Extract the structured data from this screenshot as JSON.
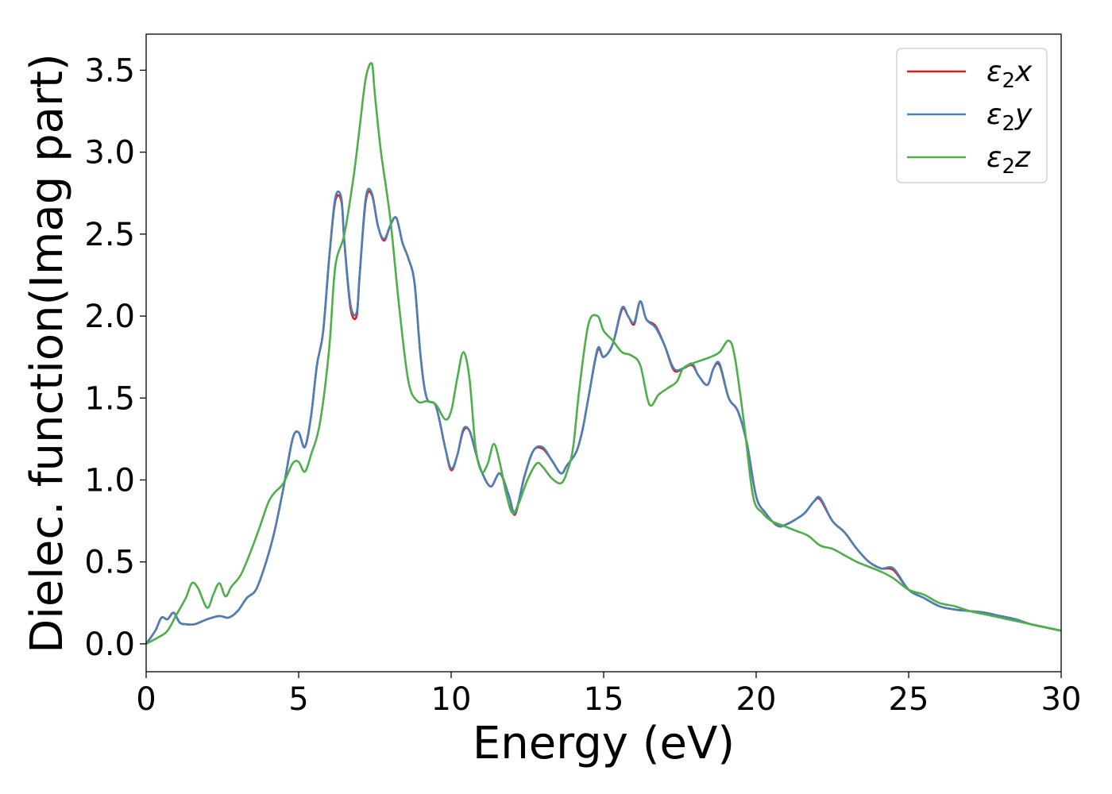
{
  "chart_data": {
    "type": "line",
    "xlabel": "Energy (eV)",
    "ylabel": "Dielec. function(Imag part)",
    "xlim": [
      0,
      30
    ],
    "ylim": [
      -0.17,
      3.72
    ],
    "xticks": [
      0,
      5,
      10,
      15,
      20,
      25,
      30
    ],
    "yticks": [
      0.0,
      0.5,
      1.0,
      1.5,
      2.0,
      2.5,
      3.0,
      3.5
    ],
    "xtick_labels": [
      "0",
      "5",
      "10",
      "15",
      "20",
      "25",
      "30"
    ],
    "ytick_labels": [
      "0.0",
      "0.5",
      "1.0",
      "1.5",
      "2.0",
      "2.5",
      "3.0",
      "3.5"
    ],
    "grid": false,
    "legend_position": "top-right",
    "series": [
      {
        "name": "ε2x",
        "legend_base": "ε",
        "legend_sub": "2",
        "legend_suffix": "x",
        "color": "#e41a1c",
        "x": [
          0,
          0.3,
          0.5,
          0.7,
          0.9,
          1.1,
          1.3,
          1.6,
          2.0,
          2.4,
          2.7,
          3.0,
          3.3,
          3.6,
          3.9,
          4.2,
          4.5,
          4.8,
          5.0,
          5.2,
          5.4,
          5.6,
          5.8,
          6.0,
          6.2,
          6.4,
          6.5,
          6.7,
          6.9,
          7.0,
          7.2,
          7.4,
          7.6,
          7.8,
          8.0,
          8.2,
          8.4,
          8.6,
          8.8,
          9.0,
          9.2,
          9.5,
          9.8,
          10.0,
          10.2,
          10.4,
          10.6,
          10.8,
          11.0,
          11.3,
          11.6,
          11.9,
          12.1,
          12.4,
          12.7,
          13.0,
          13.3,
          13.6,
          13.8,
          14.1,
          14.3,
          14.5,
          14.8,
          15.0,
          15.3,
          15.6,
          15.8,
          16.0,
          16.2,
          16.4,
          16.7,
          17.0,
          17.3,
          17.6,
          17.9,
          18.1,
          18.4,
          18.6,
          18.8,
          19.1,
          19.4,
          19.7,
          20.0,
          20.3,
          20.7,
          21.0,
          21.3,
          21.6,
          21.9,
          22.1,
          22.5,
          22.9,
          23.3,
          23.7,
          24.1,
          24.5,
          25.0,
          25.5,
          26.0,
          26.5,
          27.0,
          27.5,
          28.0,
          28.5,
          29.0,
          29.5,
          30.0
        ],
        "values": [
          0.0,
          0.08,
          0.16,
          0.15,
          0.19,
          0.13,
          0.12,
          0.12,
          0.15,
          0.17,
          0.16,
          0.2,
          0.28,
          0.33,
          0.48,
          0.68,
          0.95,
          1.25,
          1.29,
          1.2,
          1.38,
          1.7,
          1.9,
          2.35,
          2.7,
          2.7,
          2.45,
          2.05,
          2.0,
          2.25,
          2.7,
          2.74,
          2.55,
          2.46,
          2.55,
          2.6,
          2.45,
          2.35,
          2.2,
          1.75,
          1.5,
          1.45,
          1.2,
          1.06,
          1.15,
          1.3,
          1.3,
          1.17,
          1.05,
          0.96,
          1.04,
          0.9,
          0.79,
          1.02,
          1.18,
          1.19,
          1.12,
          1.04,
          1.09,
          1.17,
          1.3,
          1.5,
          1.79,
          1.75,
          1.83,
          2.04,
          2.0,
          1.95,
          2.09,
          1.98,
          1.94,
          1.82,
          1.67,
          1.68,
          1.7,
          1.64,
          1.58,
          1.68,
          1.7,
          1.5,
          1.42,
          1.22,
          0.9,
          0.8,
          0.72,
          0.73,
          0.76,
          0.8,
          0.87,
          0.88,
          0.75,
          0.68,
          0.58,
          0.5,
          0.46,
          0.45,
          0.33,
          0.28,
          0.23,
          0.21,
          0.2,
          0.19,
          0.17,
          0.15,
          0.12,
          0.1,
          0.08
        ]
      },
      {
        "name": "ε2y",
        "legend_base": "ε",
        "legend_sub": "2",
        "legend_suffix": "y",
        "color": "#4a80b8",
        "x": [
          0,
          0.3,
          0.5,
          0.7,
          0.9,
          1.1,
          1.3,
          1.6,
          2.0,
          2.4,
          2.7,
          3.0,
          3.3,
          3.6,
          3.9,
          4.2,
          4.5,
          4.8,
          5.0,
          5.2,
          5.4,
          5.6,
          5.8,
          6.0,
          6.2,
          6.4,
          6.5,
          6.7,
          6.9,
          7.0,
          7.2,
          7.4,
          7.6,
          7.8,
          8.0,
          8.2,
          8.4,
          8.6,
          8.8,
          9.0,
          9.2,
          9.5,
          9.8,
          10.0,
          10.2,
          10.4,
          10.6,
          10.8,
          11.0,
          11.3,
          11.6,
          11.9,
          12.1,
          12.4,
          12.7,
          13.0,
          13.3,
          13.6,
          13.8,
          14.1,
          14.3,
          14.5,
          14.8,
          15.0,
          15.3,
          15.6,
          15.8,
          16.0,
          16.2,
          16.4,
          16.7,
          17.0,
          17.3,
          17.6,
          17.9,
          18.1,
          18.4,
          18.6,
          18.8,
          19.1,
          19.4,
          19.7,
          20.0,
          20.3,
          20.7,
          21.0,
          21.3,
          21.6,
          21.9,
          22.1,
          22.5,
          22.9,
          23.3,
          23.7,
          24.1,
          24.5,
          25.0,
          25.5,
          26.0,
          26.5,
          27.0,
          27.5,
          28.0,
          28.5,
          29.0,
          29.5,
          30.0
        ],
        "values": [
          0.0,
          0.08,
          0.16,
          0.15,
          0.19,
          0.13,
          0.12,
          0.12,
          0.15,
          0.17,
          0.16,
          0.2,
          0.28,
          0.33,
          0.48,
          0.68,
          0.95,
          1.25,
          1.29,
          1.2,
          1.38,
          1.7,
          1.9,
          2.35,
          2.72,
          2.72,
          2.45,
          2.07,
          2.02,
          2.25,
          2.72,
          2.75,
          2.55,
          2.47,
          2.55,
          2.6,
          2.45,
          2.35,
          2.2,
          1.75,
          1.5,
          1.45,
          1.2,
          1.07,
          1.15,
          1.31,
          1.3,
          1.17,
          1.05,
          0.96,
          1.04,
          0.9,
          0.8,
          1.02,
          1.18,
          1.2,
          1.12,
          1.04,
          1.09,
          1.17,
          1.3,
          1.5,
          1.8,
          1.75,
          1.83,
          2.05,
          2.0,
          1.96,
          2.09,
          1.98,
          1.93,
          1.82,
          1.68,
          1.68,
          1.71,
          1.64,
          1.58,
          1.68,
          1.71,
          1.5,
          1.42,
          1.22,
          0.9,
          0.8,
          0.72,
          0.73,
          0.76,
          0.8,
          0.87,
          0.89,
          0.75,
          0.68,
          0.58,
          0.5,
          0.46,
          0.46,
          0.33,
          0.28,
          0.23,
          0.21,
          0.2,
          0.19,
          0.17,
          0.15,
          0.12,
          0.1,
          0.08
        ]
      },
      {
        "name": "ε2z",
        "legend_base": "ε",
        "legend_sub": "2",
        "legend_suffix": "z",
        "color": "#4daf4a",
        "x": [
          0,
          0.4,
          0.7,
          1.0,
          1.3,
          1.5,
          1.7,
          2.0,
          2.2,
          2.4,
          2.6,
          2.8,
          3.1,
          3.4,
          3.7,
          4.0,
          4.2,
          4.5,
          4.8,
          5.0,
          5.2,
          5.4,
          5.7,
          6.0,
          6.2,
          6.5,
          6.8,
          7.0,
          7.2,
          7.4,
          7.5,
          7.7,
          8.0,
          8.3,
          8.6,
          8.9,
          9.2,
          9.5,
          9.8,
          10.0,
          10.2,
          10.4,
          10.6,
          10.8,
          11.0,
          11.2,
          11.4,
          11.6,
          11.8,
          12.0,
          12.2,
          12.5,
          12.8,
          13.0,
          13.3,
          13.6,
          13.8,
          14.0,
          14.2,
          14.5,
          14.8,
          15.0,
          15.3,
          15.6,
          15.9,
          16.2,
          16.5,
          16.8,
          17.1,
          17.4,
          17.6,
          17.9,
          18.2,
          18.5,
          18.8,
          19.1,
          19.3,
          19.6,
          19.9,
          20.2,
          20.5,
          20.9,
          21.3,
          21.7,
          22.1,
          22.5,
          22.9,
          23.3,
          23.7,
          24.1,
          24.5,
          25.0,
          25.5,
          26.0,
          26.5,
          27.0,
          27.5,
          28.0,
          28.5,
          29.0,
          29.5,
          30.0
        ],
        "values": [
          0.0,
          0.04,
          0.08,
          0.18,
          0.28,
          0.37,
          0.34,
          0.22,
          0.3,
          0.37,
          0.29,
          0.35,
          0.42,
          0.55,
          0.7,
          0.86,
          0.92,
          0.98,
          1.1,
          1.11,
          1.05,
          1.15,
          1.35,
          1.8,
          2.3,
          2.5,
          2.85,
          3.15,
          3.45,
          3.54,
          3.35,
          3.0,
          2.6,
          2.05,
          1.6,
          1.48,
          1.48,
          1.46,
          1.37,
          1.42,
          1.62,
          1.78,
          1.62,
          1.2,
          1.05,
          1.1,
          1.22,
          1.1,
          0.92,
          0.8,
          0.85,
          1.0,
          1.1,
          1.08,
          1.01,
          0.98,
          1.05,
          1.2,
          1.55,
          1.95,
          2.0,
          1.91,
          1.85,
          1.78,
          1.76,
          1.7,
          1.46,
          1.52,
          1.56,
          1.6,
          1.68,
          1.71,
          1.73,
          1.75,
          1.78,
          1.85,
          1.75,
          1.35,
          0.9,
          0.8,
          0.75,
          0.72,
          0.69,
          0.66,
          0.6,
          0.58,
          0.54,
          0.5,
          0.47,
          0.44,
          0.4,
          0.33,
          0.3,
          0.25,
          0.23,
          0.2,
          0.18,
          0.16,
          0.14,
          0.12,
          0.1,
          0.08
        ]
      }
    ]
  }
}
